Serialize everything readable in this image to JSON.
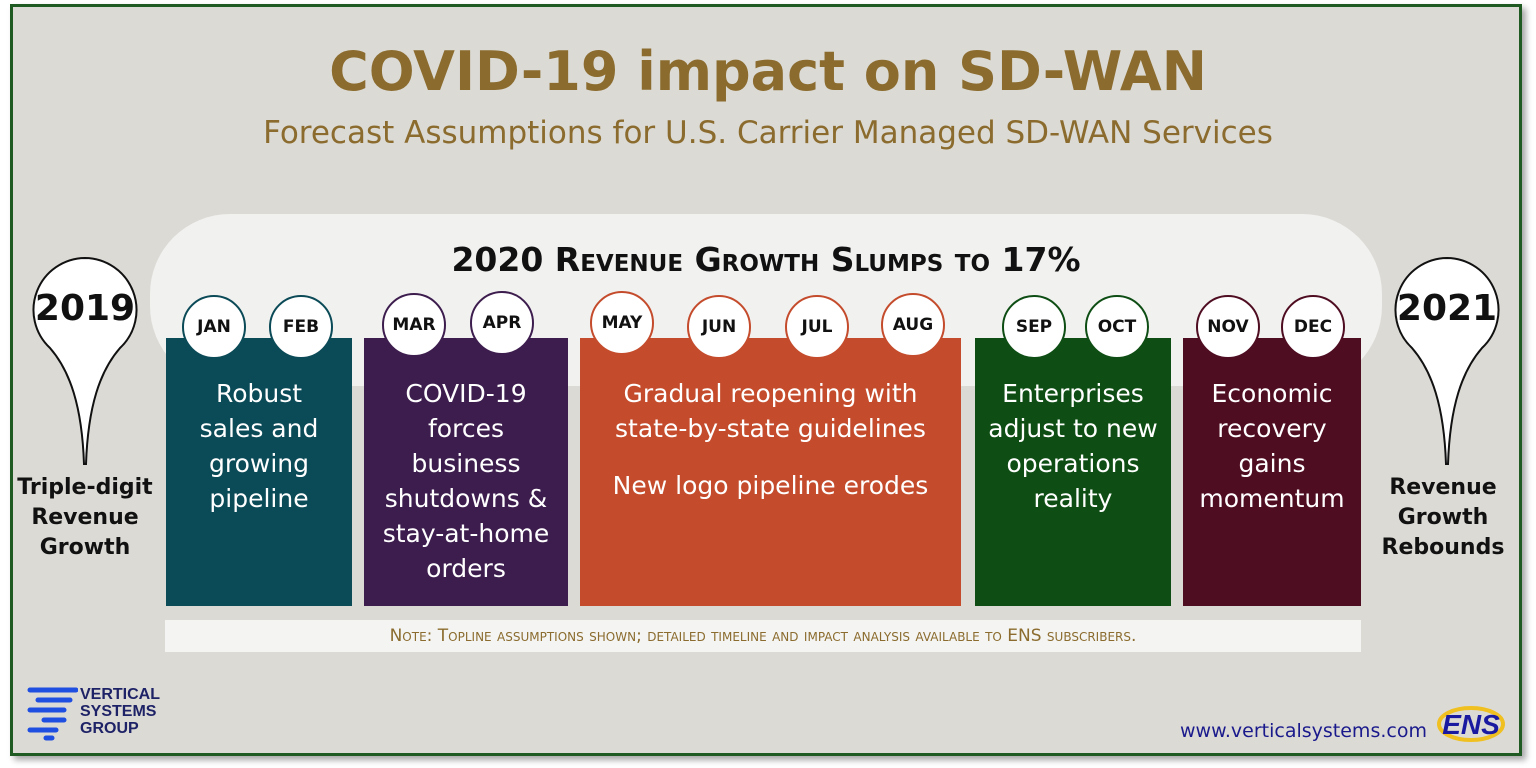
{
  "title": "COVID-19 impact on SD-WAN",
  "subtitle": "Forecast Assumptions for U.S. Carrier Managed SD-WAN Services",
  "headline": "2020 Revenue Growth Slumps to 17%",
  "left": {
    "year": "2019",
    "text": [
      "Triple-digit",
      "Revenue",
      "Growth"
    ]
  },
  "right": {
    "year": "2021",
    "text": [
      "Revenue",
      "Growth",
      "Rebounds"
    ]
  },
  "phases": [
    {
      "months": [
        "JAN",
        "FEB"
      ],
      "lines": [
        "Robust",
        "sales and",
        "growing",
        "pipeline"
      ],
      "color": "#0b4a57"
    },
    {
      "months": [
        "MAR",
        "APR"
      ],
      "lines": [
        "COVID-19",
        "forces",
        "business",
        "shutdowns &",
        "stay-at-home",
        "orders"
      ],
      "color": "#3d1d4e"
    },
    {
      "months": [
        "MAY",
        "JUN",
        "JUL",
        "AUG"
      ],
      "lines": [
        "Gradual reopening with",
        "state-by-state guidelines"
      ],
      "extra": "New logo pipeline erodes",
      "color": "#c44c2c"
    },
    {
      "months": [
        "SEP",
        "OCT"
      ],
      "lines": [
        "Enterprises",
        "adjust to new",
        "operations",
        "reality"
      ],
      "color": "#0e4e14"
    },
    {
      "months": [
        "NOV",
        "DEC"
      ],
      "lines": [
        "Economic",
        "recovery",
        "gains",
        "momentum"
      ],
      "color": "#4f0d22"
    }
  ],
  "note": "Note: Topline assumptions shown; detailed timeline and impact analysis available to ENS subscribers.",
  "logo": {
    "lines": [
      "VERTICAL",
      "SYSTEMS",
      "GROUP"
    ]
  },
  "url": "www.verticalsystems.com",
  "ens_logo": "ENS"
}
